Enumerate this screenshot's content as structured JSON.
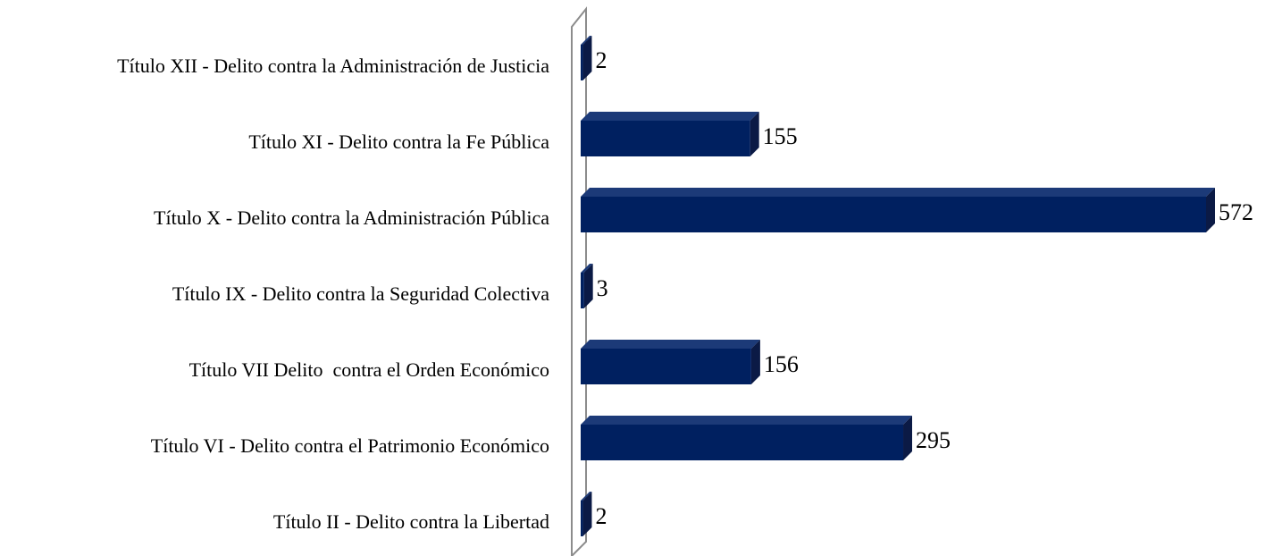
{
  "chart_data": {
    "type": "bar",
    "orientation": "horizontal",
    "categories": [
      "Título XII - Delito contra la Administración de Justicia",
      "Título XI - Delito contra la Fe Pública",
      "Título X - Delito contra la Administración Pública",
      "Título IX - Delito contra la Seguridad Colectiva",
      "Título VII Delito  contra el Orden Económico",
      "Título VI - Delito contra el Patrimonio Económico",
      "Título II - Delito contra la Libertad"
    ],
    "values": [
      2,
      155,
      572,
      3,
      156,
      295,
      2
    ],
    "color": "#002060"
  }
}
